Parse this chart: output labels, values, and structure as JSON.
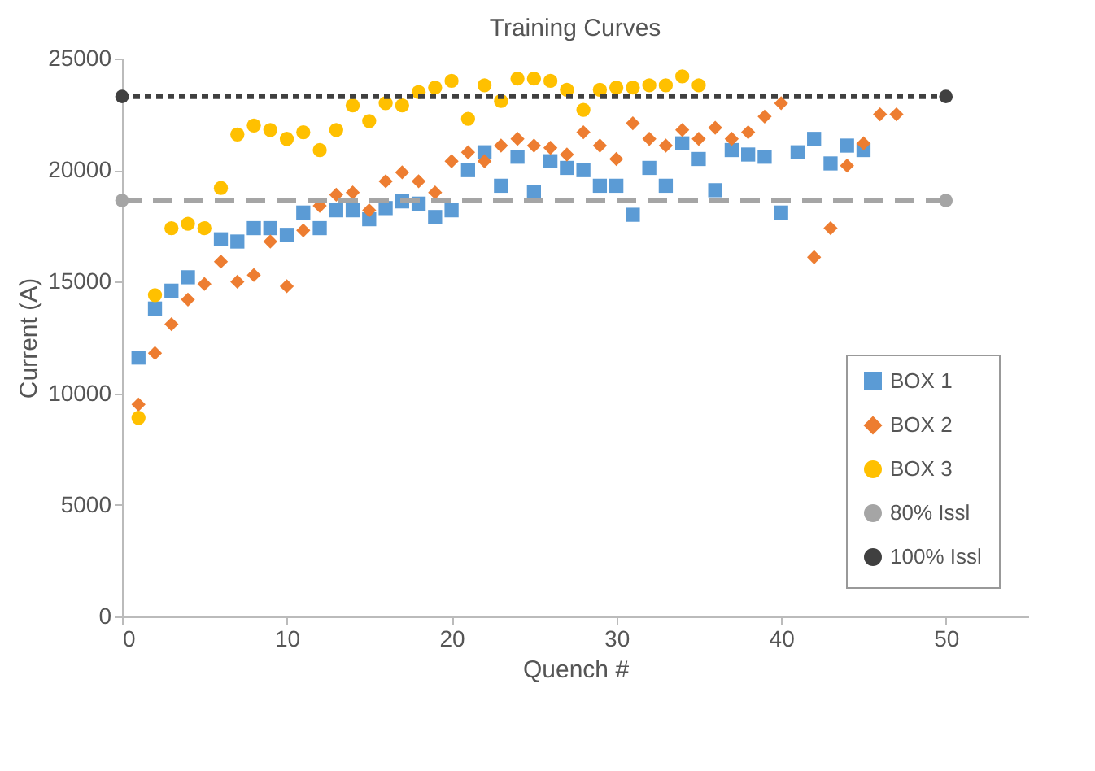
{
  "chart_data": {
    "type": "scatter",
    "title": "Training Curves",
    "xlabel": "Quench #",
    "ylabel": "Current (A)",
    "xlim": [
      0,
      55
    ],
    "xticks": [
      0,
      10,
      20,
      30,
      40,
      50
    ],
    "ylim": [
      0,
      25000
    ],
    "yticks": [
      0,
      5000,
      10000,
      15000,
      20000,
      25000
    ],
    "grid": false,
    "legend": "bottom right",
    "series": [
      {
        "name": "BOX 1",
        "color": "#5b9bd5",
        "marker": "square",
        "x": [
          1,
          2,
          3,
          4,
          6,
          7,
          8,
          9,
          10,
          11,
          12,
          13,
          14,
          15,
          16,
          17,
          18,
          19,
          20,
          21,
          22,
          23,
          24,
          25,
          26,
          27,
          28,
          29,
          30,
          31,
          32,
          33,
          34,
          35,
          36,
          37,
          38,
          39,
          40,
          41,
          42,
          43,
          44,
          45
        ],
        "values": [
          11600,
          13800,
          14600,
          15200,
          16900,
          16800,
          17400,
          17400,
          17100,
          18100,
          17400,
          18200,
          18200,
          17800,
          18300,
          18600,
          18500,
          17900,
          18200,
          20000,
          20800,
          19300,
          20600,
          19000,
          20400,
          20100,
          20000,
          19300,
          19300,
          18000,
          20100,
          19300,
          21200,
          20500,
          19100,
          20900,
          20700,
          20600,
          18100,
          20800,
          21400,
          20300,
          21100,
          20900
        ]
      },
      {
        "name": "BOX 2",
        "color": "#ed7d31",
        "marker": "diamond",
        "x": [
          1,
          2,
          3,
          4,
          5,
          6,
          7,
          8,
          9,
          10,
          11,
          12,
          13,
          14,
          15,
          16,
          17,
          18,
          19,
          20,
          21,
          22,
          23,
          24,
          25,
          26,
          27,
          28,
          29,
          30,
          31,
          32,
          33,
          34,
          35,
          36,
          37,
          38,
          39,
          40,
          42,
          43,
          44,
          45,
          46,
          47
        ],
        "values": [
          9500,
          11800,
          13100,
          14200,
          14900,
          15900,
          15000,
          15300,
          16800,
          14800,
          17300,
          18400,
          18900,
          19000,
          18200,
          19500,
          19900,
          19500,
          19000,
          20400,
          20800,
          20400,
          21100,
          21400,
          21100,
          21000,
          20700,
          21700,
          21100,
          20500,
          22100,
          21400,
          21100,
          21800,
          21400,
          21900,
          21400,
          21700,
          22400,
          23000,
          16100,
          17400,
          20200,
          21200,
          22500,
          22500
        ]
      },
      {
        "name": "BOX 3",
        "color": "#ffc000",
        "marker": "circle",
        "x": [
          1,
          2,
          3,
          4,
          5,
          6,
          7,
          8,
          9,
          10,
          11,
          12,
          13,
          14,
          15,
          16,
          17,
          18,
          19,
          20,
          21,
          22,
          23,
          24,
          25,
          26,
          27,
          28,
          29,
          30,
          31,
          32,
          33,
          34,
          35
        ],
        "values": [
          8900,
          14400,
          17400,
          17600,
          17400,
          19200,
          21600,
          22000,
          21800,
          21400,
          21700,
          20900,
          21800,
          22900,
          22200,
          23000,
          22900,
          23500,
          23700,
          24000,
          22300,
          23800,
          23100,
          24100,
          24100,
          24000,
          23600,
          22700,
          23600,
          23700,
          23700,
          23800,
          23800,
          24200,
          23800
        ]
      },
      {
        "name": "80% Issl",
        "color": "#a5a5a5",
        "type": "line",
        "marker": "circle",
        "line_style": "dashed",
        "x": [
          0,
          50
        ],
        "values": [
          18640,
          18640
        ]
      },
      {
        "name": "100% Issl",
        "color": "#404040",
        "type": "line",
        "marker": "circle",
        "line_style": "dotted",
        "x": [
          0,
          50
        ],
        "values": [
          23300,
          23300
        ]
      }
    ]
  }
}
